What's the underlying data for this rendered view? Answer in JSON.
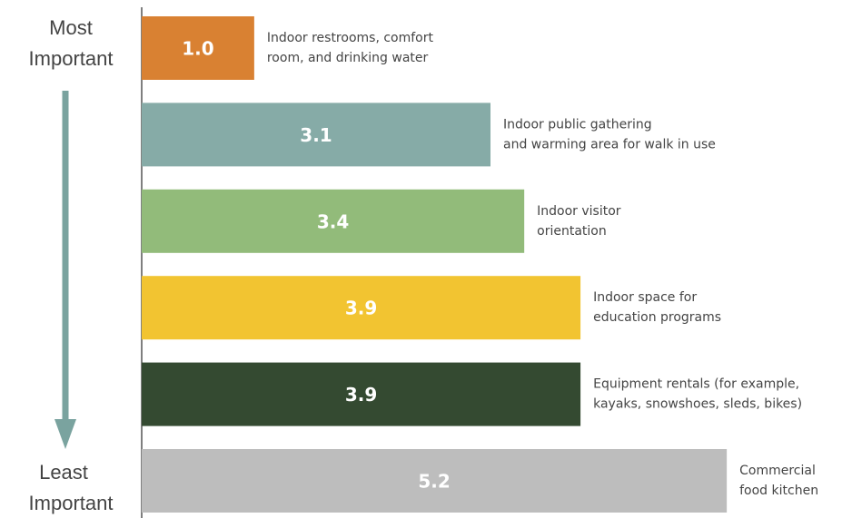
{
  "chart_data": {
    "type": "bar",
    "orientation": "horizontal",
    "categories": [
      [
        "Indoor restrooms, comfort",
        "room, and drinking water"
      ],
      [
        "Indoor public gathering",
        "and warming area for walk in use"
      ],
      [
        "Indoor visitor",
        "orientation"
      ],
      [
        "Indoor space for",
        "education programs"
      ],
      [
        "Equipment rentals (for example,",
        "kayaks, snowshoes, sleds, bikes)"
      ],
      [
        "Commercial",
        "food kitchen"
      ]
    ],
    "values": [
      1.0,
      3.1,
      3.4,
      3.9,
      3.9,
      5.2
    ],
    "value_labels": [
      "1.0",
      "3.1",
      "3.4",
      "3.9",
      "3.9",
      "5.2"
    ],
    "colors": [
      "#d98132",
      "#86aba7",
      "#92bb7a",
      "#f2c431",
      "#344a31",
      "#bdbdbd"
    ],
    "xlim": [
      0,
      6.2
    ],
    "top_label": [
      "Most",
      "Important"
    ],
    "bottom_label": [
      "Least",
      "Important"
    ],
    "arrow_color": "#7aa39f"
  }
}
